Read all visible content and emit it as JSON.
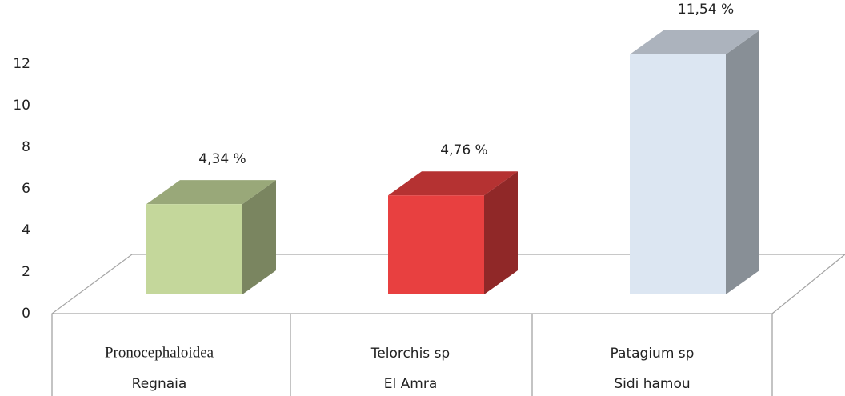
{
  "chart_data": {
    "type": "bar3d",
    "categories": [
      [
        "Pronocephaloidea",
        "Regnaia"
      ],
      [
        "Telorchis sp",
        "El Amra"
      ],
      [
        "Patagium sp",
        "Sidi hamou"
      ]
    ],
    "values": [
      4.34,
      4.76,
      11.54
    ],
    "value_labels": [
      "4,34 %",
      "4,76 %",
      "11,54 %"
    ],
    "colors": [
      "#c4d79b",
      "#e84040",
      "#dce6f2"
    ],
    "ylim": [
      0,
      12
    ],
    "yticks": [
      0,
      2,
      4,
      6,
      8,
      10,
      12
    ],
    "grid": false
  }
}
